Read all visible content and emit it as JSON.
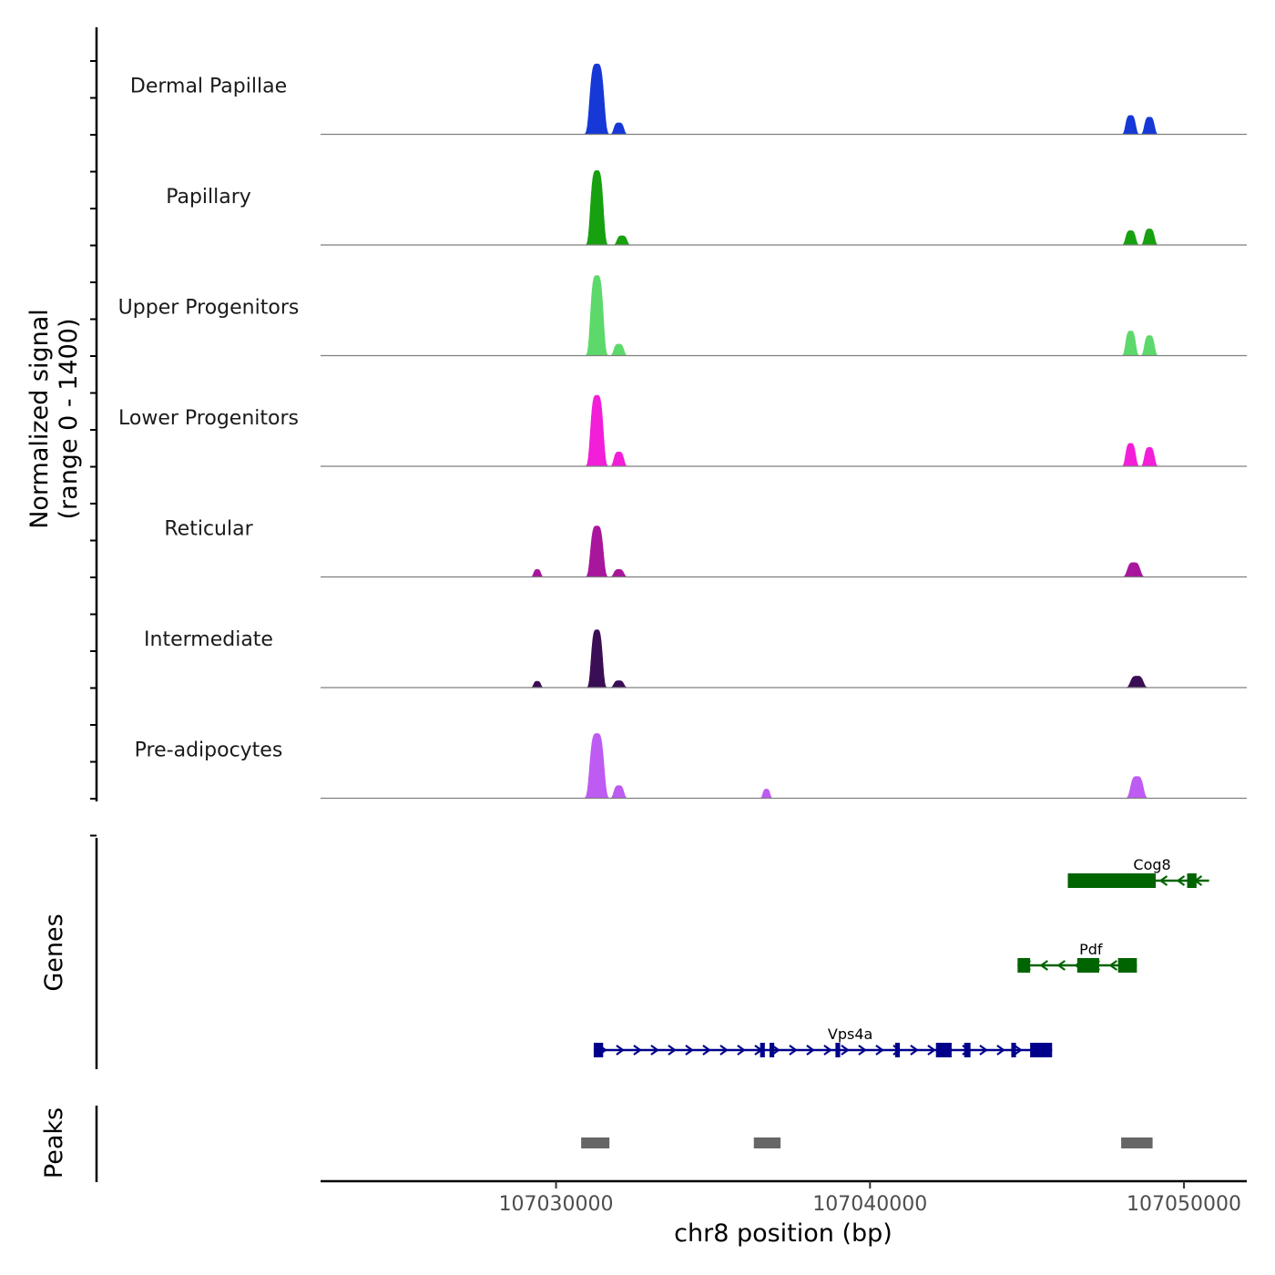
{
  "chart_data": {
    "type": "area",
    "title": "",
    "region": {
      "chrom": "chr8",
      "start": 107022500,
      "end": 107052000
    },
    "xlabel": "chr8 position (bp)",
    "ylabel_line1": "Normalized signal",
    "ylabel_line2": "(range 0 - 1400)",
    "ylim": [
      0,
      1400
    ],
    "x_ticks": [
      {
        "value": 107030000,
        "label": "107030000"
      },
      {
        "value": 107040000,
        "label": "107040000"
      },
      {
        "value": 107050000,
        "label": "107050000"
      }
    ],
    "series": [
      {
        "name": "Dermal Papillae",
        "color": "#1538D6",
        "peaks": [
          {
            "center": 107031300,
            "width": 500,
            "height": 1230
          },
          {
            "center": 107032000,
            "width": 350,
            "height": 200
          },
          {
            "center": 107048300,
            "width": 350,
            "height": 330
          },
          {
            "center": 107048900,
            "width": 350,
            "height": 300
          }
        ]
      },
      {
        "name": "Papillary",
        "color": "#17A00F",
        "peaks": [
          {
            "center": 107031300,
            "width": 450,
            "height": 1300
          },
          {
            "center": 107032100,
            "width": 350,
            "height": 160
          },
          {
            "center": 107048300,
            "width": 350,
            "height": 250
          },
          {
            "center": 107048900,
            "width": 350,
            "height": 280
          }
        ]
      },
      {
        "name": "Upper Progenitors",
        "color": "#5CD96A",
        "peaks": [
          {
            "center": 107031300,
            "width": 450,
            "height": 1400
          },
          {
            "center": 107032000,
            "width": 350,
            "height": 200
          },
          {
            "center": 107048300,
            "width": 350,
            "height": 430
          },
          {
            "center": 107048900,
            "width": 350,
            "height": 350
          }
        ]
      },
      {
        "name": "Lower Progenitors",
        "color": "#F21ED8",
        "peaks": [
          {
            "center": 107031300,
            "width": 450,
            "height": 1240
          },
          {
            "center": 107032000,
            "width": 350,
            "height": 250
          },
          {
            "center": 107048300,
            "width": 350,
            "height": 400
          },
          {
            "center": 107048900,
            "width": 350,
            "height": 330
          }
        ]
      },
      {
        "name": "Reticular",
        "color": "#A8169C",
        "peaks": [
          {
            "center": 107031300,
            "width": 450,
            "height": 890
          },
          {
            "center": 107029400,
            "width": 250,
            "height": 130
          },
          {
            "center": 107032000,
            "width": 350,
            "height": 130
          },
          {
            "center": 107048400,
            "width": 450,
            "height": 250
          }
        ]
      },
      {
        "name": "Intermediate",
        "color": "#3A0E55",
        "peaks": [
          {
            "center": 107031300,
            "width": 400,
            "height": 1010
          },
          {
            "center": 107029400,
            "width": 250,
            "height": 110
          },
          {
            "center": 107032000,
            "width": 350,
            "height": 120
          },
          {
            "center": 107048500,
            "width": 450,
            "height": 200
          }
        ]
      },
      {
        "name": "Pre-adipocytes",
        "color": "#BE5BF2",
        "peaks": [
          {
            "center": 107031300,
            "width": 500,
            "height": 1130
          },
          {
            "center": 107032000,
            "width": 350,
            "height": 220
          },
          {
            "center": 107036700,
            "width": 250,
            "height": 160
          },
          {
            "center": 107048500,
            "width": 450,
            "height": 380
          }
        ]
      }
    ],
    "panels": {
      "genes_label": "Genes",
      "peaks_label": "Peaks"
    },
    "genes": [
      {
        "name": "Cog8",
        "strand": "-",
        "color": "#006400",
        "start": 107046300,
        "end": 107050800,
        "exons": [
          [
            107046300,
            107049100
          ],
          [
            107050100,
            107050400
          ]
        ]
      },
      {
        "name": "Pdf",
        "strand": "-",
        "color": "#006400",
        "start": 107044700,
        "end": 107048500,
        "exons": [
          [
            107044700,
            107045100
          ],
          [
            107046600,
            107047300
          ],
          [
            107047900,
            107048500
          ]
        ]
      },
      {
        "name": "Vps4a",
        "strand": "+",
        "color": "#00008B",
        "start": 107031200,
        "end": 107045800,
        "exons": [
          [
            107031200,
            107031500
          ],
          [
            107036500,
            107036650
          ],
          [
            107036800,
            107036950
          ],
          [
            107038900,
            107039050
          ],
          [
            107040800,
            107040950
          ],
          [
            107042100,
            107042600
          ],
          [
            107043000,
            107043200
          ],
          [
            107044500,
            107044650
          ],
          [
            107045100,
            107045800
          ]
        ]
      }
    ],
    "peak_regions": [
      {
        "start": 107030800,
        "end": 107031700
      },
      {
        "start": 107036300,
        "end": 107037150
      },
      {
        "start": 107048000,
        "end": 107049000
      }
    ]
  }
}
